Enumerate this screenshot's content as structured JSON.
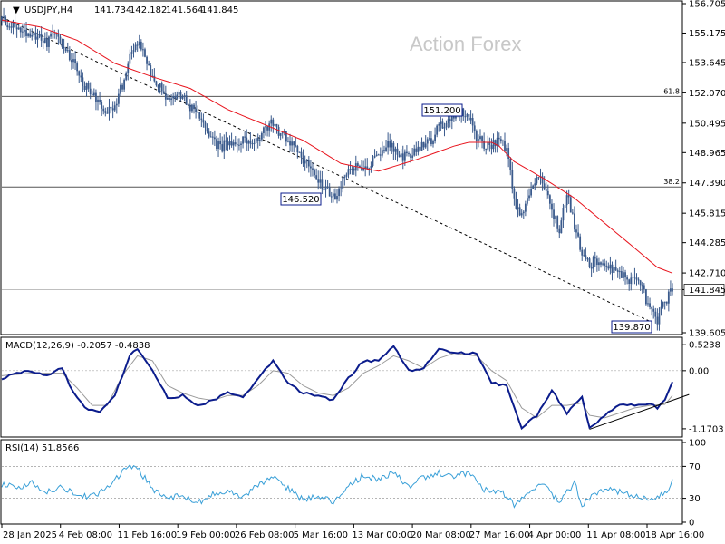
{
  "header": {
    "symbol": "USDJPY,H4",
    "open": "141.734",
    "high": "142.182",
    "low": "141.564",
    "close": "141.845"
  },
  "watermark": "Action Forex",
  "colors": {
    "candles": "#3a5a8c",
    "ma": "#e8141d",
    "macd": "#0b1c8c",
    "signal": "#9a9a9a",
    "rsi": "#3aa0d8",
    "price_tag_bg": "#ffffff",
    "grid": "#c0c0c0"
  },
  "chart_data": [
    {
      "type": "candlestick",
      "name": "price",
      "ylim": [
        139.605,
        156.7
      ],
      "y_ticks": [
        "156.705",
        "155.175",
        "153.645",
        "152.070",
        "150.495",
        "148.965",
        "147.390",
        "145.815",
        "144.285",
        "142.710",
        "141.845",
        "139.605"
      ],
      "y_tick_values": [
        156.705,
        155.175,
        153.645,
        152.07,
        150.495,
        148.965,
        147.39,
        145.815,
        144.285,
        142.71,
        141.845,
        139.605
      ],
      "x_ticks": [
        "28 Jan 2025",
        "4 Feb 08:00",
        "11 Feb 16:00",
        "19 Feb 00:00",
        "26 Feb 08:00",
        "5 Mar 16:00",
        "13 Mar 00:00",
        "20 Mar 08:00",
        "27 Mar 16:00",
        "4 Apr 00:00",
        "11 Apr 08:00",
        "18 Apr 16:00"
      ],
      "last_price": 141.845,
      "fib_levels": [
        {
          "label": "61.8",
          "value": 151.88
        },
        {
          "label": "38.2",
          "value": 147.18
        }
      ],
      "annotations": [
        {
          "label": "151.200",
          "value": 151.2
        },
        {
          "label": "146.520",
          "value": 146.52
        },
        {
          "label": "139.870",
          "value": 139.87
        }
      ],
      "close_path": [
        [
          0,
          155.8
        ],
        [
          2,
          155.4
        ],
        [
          4,
          155.1
        ],
        [
          6,
          154.6
        ],
        [
          7,
          155.2
        ],
        [
          9,
          154.0
        ],
        [
          10,
          153.2
        ],
        [
          11,
          152.4
        ],
        [
          13,
          151.6
        ],
        [
          14,
          151.0
        ],
        [
          15,
          151.5
        ],
        [
          16,
          152.5
        ],
        [
          17,
          154.2
        ],
        [
          18,
          154.7
        ],
        [
          19,
          153.9
        ],
        [
          20,
          152.8
        ],
        [
          21,
          152.5
        ],
        [
          22,
          151.6
        ],
        [
          23,
          152.0
        ],
        [
          24,
          151.8
        ],
        [
          25,
          151.3
        ],
        [
          26,
          150.9
        ],
        [
          27,
          150.2
        ],
        [
          28,
          149.6
        ],
        [
          29,
          149.2
        ],
        [
          30,
          149.5
        ],
        [
          31,
          149.2
        ],
        [
          32,
          149.8
        ],
        [
          33,
          149.3
        ],
        [
          34,
          149.6
        ],
        [
          35,
          150.2
        ],
        [
          36,
          150.6
        ],
        [
          37,
          149.9
        ],
        [
          38,
          149.7
        ],
        [
          39,
          149.3
        ],
        [
          40,
          148.6
        ],
        [
          41,
          148.3
        ],
        [
          42,
          147.5
        ],
        [
          43,
          147.0
        ],
        [
          44,
          146.6
        ],
        [
          45,
          147.3
        ],
        [
          46,
          148.2
        ],
        [
          47,
          148.2
        ],
        [
          48,
          147.9
        ],
        [
          49,
          148.3
        ],
        [
          50,
          148.9
        ],
        [
          51,
          149.4
        ],
        [
          52,
          149.2
        ],
        [
          53,
          148.7
        ],
        [
          54,
          148.9
        ],
        [
          55,
          149.1
        ],
        [
          56,
          149.4
        ],
        [
          57,
          149.6
        ],
        [
          58,
          150.3
        ],
        [
          59,
          150.6
        ],
        [
          60,
          150.8
        ],
        [
          61,
          151.0
        ],
        [
          62,
          150.9
        ],
        [
          63,
          149.8
        ],
        [
          64,
          149.4
        ],
        [
          65,
          149.3
        ],
        [
          66,
          149.6
        ],
        [
          67,
          149.1
        ],
        [
          68,
          146.5
        ],
        [
          69,
          145.6
        ],
        [
          70,
          146.9
        ],
        [
          71,
          147.8
        ],
        [
          72,
          147.2
        ],
        [
          73,
          146.0
        ],
        [
          74,
          145.0
        ],
        [
          75,
          146.8
        ],
        [
          76,
          145.2
        ],
        [
          77,
          143.7
        ],
        [
          78,
          143.1
        ],
        [
          79,
          143.4
        ],
        [
          80,
          143.2
        ],
        [
          81,
          142.9
        ],
        [
          82,
          142.8
        ],
        [
          83,
          142.4
        ],
        [
          84,
          142.2
        ],
        [
          85,
          141.9
        ],
        [
          86,
          140.7
        ],
        [
          87,
          140.2
        ],
        [
          88,
          141.2
        ],
        [
          89,
          141.845
        ]
      ],
      "ma_path": [
        [
          0,
          155.85
        ],
        [
          5,
          155.5
        ],
        [
          10,
          154.8
        ],
        [
          15,
          153.6
        ],
        [
          20,
          152.9
        ],
        [
          25,
          152.3
        ],
        [
          30,
          151.2
        ],
        [
          35,
          150.4
        ],
        [
          40,
          149.6
        ],
        [
          45,
          148.4
        ],
        [
          50,
          148.0
        ],
        [
          55,
          148.6
        ],
        [
          60,
          149.3
        ],
        [
          62,
          149.5
        ],
        [
          65,
          149.5
        ],
        [
          66,
          149.3
        ],
        [
          68,
          148.5
        ],
        [
          72,
          147.6
        ],
        [
          76,
          146.6
        ],
        [
          80,
          145.3
        ],
        [
          84,
          144.0
        ],
        [
          87,
          143.0
        ],
        [
          89,
          142.7
        ]
      ],
      "trendline": [
        [
          0,
          156.0
        ],
        [
          86,
          140.2
        ]
      ]
    },
    {
      "type": "line",
      "name": "MACD(12,26,9)",
      "label": "MACD(12,26,9) -0.2057 -0.4838",
      "ylim": [
        -1.3,
        0.6
      ],
      "y_ticks": [
        "0.5238",
        "0.00",
        "-1.1703"
      ],
      "y_tick_values": [
        0.5238,
        0.0,
        -1.1703
      ],
      "macd_path": [
        [
          0,
          -0.15
        ],
        [
          3,
          0.0
        ],
        [
          6,
          -0.1
        ],
        [
          8,
          0.05
        ],
        [
          9,
          -0.3
        ],
        [
          11,
          -0.75
        ],
        [
          13,
          -0.85
        ],
        [
          15,
          -0.5
        ],
        [
          17,
          0.3
        ],
        [
          18,
          0.45
        ],
        [
          20,
          0.0
        ],
        [
          22,
          -0.55
        ],
        [
          24,
          -0.5
        ],
        [
          26,
          -0.7
        ],
        [
          28,
          -0.6
        ],
        [
          30,
          -0.45
        ],
        [
          32,
          -0.55
        ],
        [
          34,
          -0.15
        ],
        [
          36,
          0.2
        ],
        [
          38,
          -0.25
        ],
        [
          40,
          -0.45
        ],
        [
          42,
          -0.5
        ],
        [
          44,
          -0.6
        ],
        [
          46,
          -0.15
        ],
        [
          48,
          0.2
        ],
        [
          50,
          0.2
        ],
        [
          52,
          0.5
        ],
        [
          54,
          0.0
        ],
        [
          56,
          0.05
        ],
        [
          58,
          0.45
        ],
        [
          60,
          0.35
        ],
        [
          63,
          0.35
        ],
        [
          65,
          -0.25
        ],
        [
          67,
          -0.3
        ],
        [
          69,
          -1.15
        ],
        [
          71,
          -0.9
        ],
        [
          73,
          -0.4
        ],
        [
          75,
          -0.85
        ],
        [
          77,
          -0.55
        ],
        [
          78,
          -1.15
        ],
        [
          80,
          -0.9
        ],
        [
          82,
          -0.7
        ],
        [
          84,
          -0.7
        ],
        [
          86,
          -0.65
        ],
        [
          87,
          -0.75
        ],
        [
          88,
          -0.6
        ],
        [
          89,
          -0.2
        ]
      ],
      "signal_path": [
        [
          0,
          -0.1
        ],
        [
          4,
          -0.05
        ],
        [
          8,
          -0.05
        ],
        [
          10,
          -0.35
        ],
        [
          12,
          -0.7
        ],
        [
          14,
          -0.7
        ],
        [
          16,
          -0.1
        ],
        [
          18,
          0.3
        ],
        [
          20,
          0.2
        ],
        [
          22,
          -0.3
        ],
        [
          24,
          -0.45
        ],
        [
          26,
          -0.55
        ],
        [
          28,
          -0.6
        ],
        [
          30,
          -0.5
        ],
        [
          32,
          -0.5
        ],
        [
          34,
          -0.3
        ],
        [
          36,
          0.0
        ],
        [
          38,
          -0.05
        ],
        [
          40,
          -0.3
        ],
        [
          42,
          -0.45
        ],
        [
          44,
          -0.5
        ],
        [
          46,
          -0.35
        ],
        [
          48,
          -0.05
        ],
        [
          50,
          0.1
        ],
        [
          52,
          0.3
        ],
        [
          54,
          0.2
        ],
        [
          56,
          0.05
        ],
        [
          58,
          0.25
        ],
        [
          60,
          0.35
        ],
        [
          63,
          0.3
        ],
        [
          65,
          0.0
        ],
        [
          67,
          -0.2
        ],
        [
          69,
          -0.75
        ],
        [
          71,
          -0.95
        ],
        [
          73,
          -0.7
        ],
        [
          75,
          -0.7
        ],
        [
          77,
          -0.65
        ],
        [
          78,
          -0.9
        ],
        [
          80,
          -0.95
        ],
        [
          82,
          -0.85
        ],
        [
          84,
          -0.75
        ],
        [
          86,
          -0.7
        ],
        [
          88,
          -0.68
        ],
        [
          89,
          -0.5
        ]
      ],
      "trendline": [
        [
          78,
          -1.18
        ],
        [
          90,
          -0.48
        ]
      ]
    },
    {
      "type": "line",
      "name": "RSI(14)",
      "label": "RSI(14) 51.8566",
      "ylim": [
        0,
        100
      ],
      "y_ticks": [
        "100",
        "70",
        "30",
        "0"
      ],
      "y_tick_values": [
        100,
        70,
        30,
        0
      ],
      "rsi_path": [
        [
          0,
          48
        ],
        [
          2,
          42
        ],
        [
          4,
          50
        ],
        [
          6,
          38
        ],
        [
          8,
          44
        ],
        [
          10,
          34
        ],
        [
          12,
          32
        ],
        [
          14,
          44
        ],
        [
          16,
          62
        ],
        [
          17,
          72
        ],
        [
          18,
          68
        ],
        [
          20,
          42
        ],
        [
          22,
          30
        ],
        [
          24,
          34
        ],
        [
          26,
          24
        ],
        [
          28,
          36
        ],
        [
          30,
          40
        ],
        [
          32,
          30
        ],
        [
          34,
          48
        ],
        [
          36,
          56
        ],
        [
          38,
          42
        ],
        [
          40,
          28
        ],
        [
          42,
          34
        ],
        [
          44,
          24
        ],
        [
          46,
          46
        ],
        [
          48,
          58
        ],
        [
          50,
          54
        ],
        [
          52,
          62
        ],
        [
          54,
          44
        ],
        [
          56,
          56
        ],
        [
          58,
          62
        ],
        [
          60,
          58
        ],
        [
          62,
          62
        ],
        [
          64,
          40
        ],
        [
          66,
          40
        ],
        [
          68,
          22
        ],
        [
          70,
          38
        ],
        [
          72,
          50
        ],
        [
          74,
          24
        ],
        [
          76,
          50
        ],
        [
          77,
          22
        ],
        [
          78,
          30
        ],
        [
          80,
          42
        ],
        [
          82,
          38
        ],
        [
          84,
          34
        ],
        [
          86,
          28
        ],
        [
          88,
          36
        ],
        [
          89,
          52
        ]
      ]
    }
  ]
}
